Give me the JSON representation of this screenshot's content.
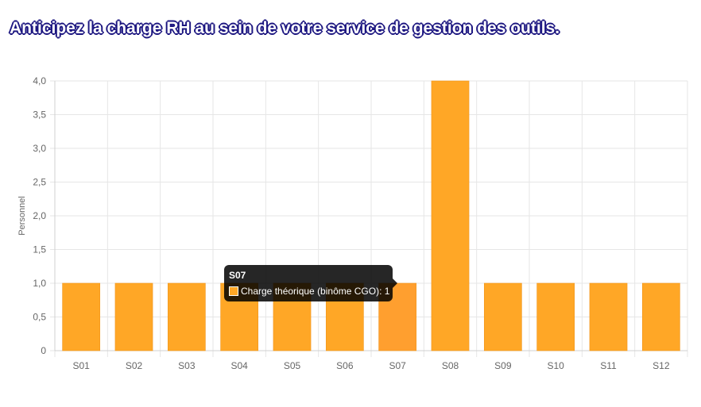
{
  "page": {
    "title": "Anticipez la charge RH au sein de votre service de gestion des outils."
  },
  "chart_data": {
    "type": "bar",
    "categories": [
      "S01",
      "S02",
      "S03",
      "S04",
      "S05",
      "S06",
      "S07",
      "S08",
      "S09",
      "S10",
      "S11",
      "S12"
    ],
    "series": [
      {
        "name": "Charge théorique (binôme CGO)",
        "values": [
          1,
          1,
          1,
          1,
          1,
          1,
          1,
          4,
          1,
          1,
          1,
          1
        ],
        "color": "#ffa726"
      }
    ],
    "ylabel": "Personnel",
    "ylim": [
      0,
      4
    ],
    "yticks": [
      "0",
      "0,5",
      "1,0",
      "1,5",
      "2,0",
      "2,5",
      "3,0",
      "3,5",
      "4,0"
    ],
    "grid": true,
    "highlight_index": 6,
    "highlight_color": "#ff9f2f"
  },
  "tooltip": {
    "title": "S07",
    "label": "Charge théorique (binôme CGO): 1"
  }
}
